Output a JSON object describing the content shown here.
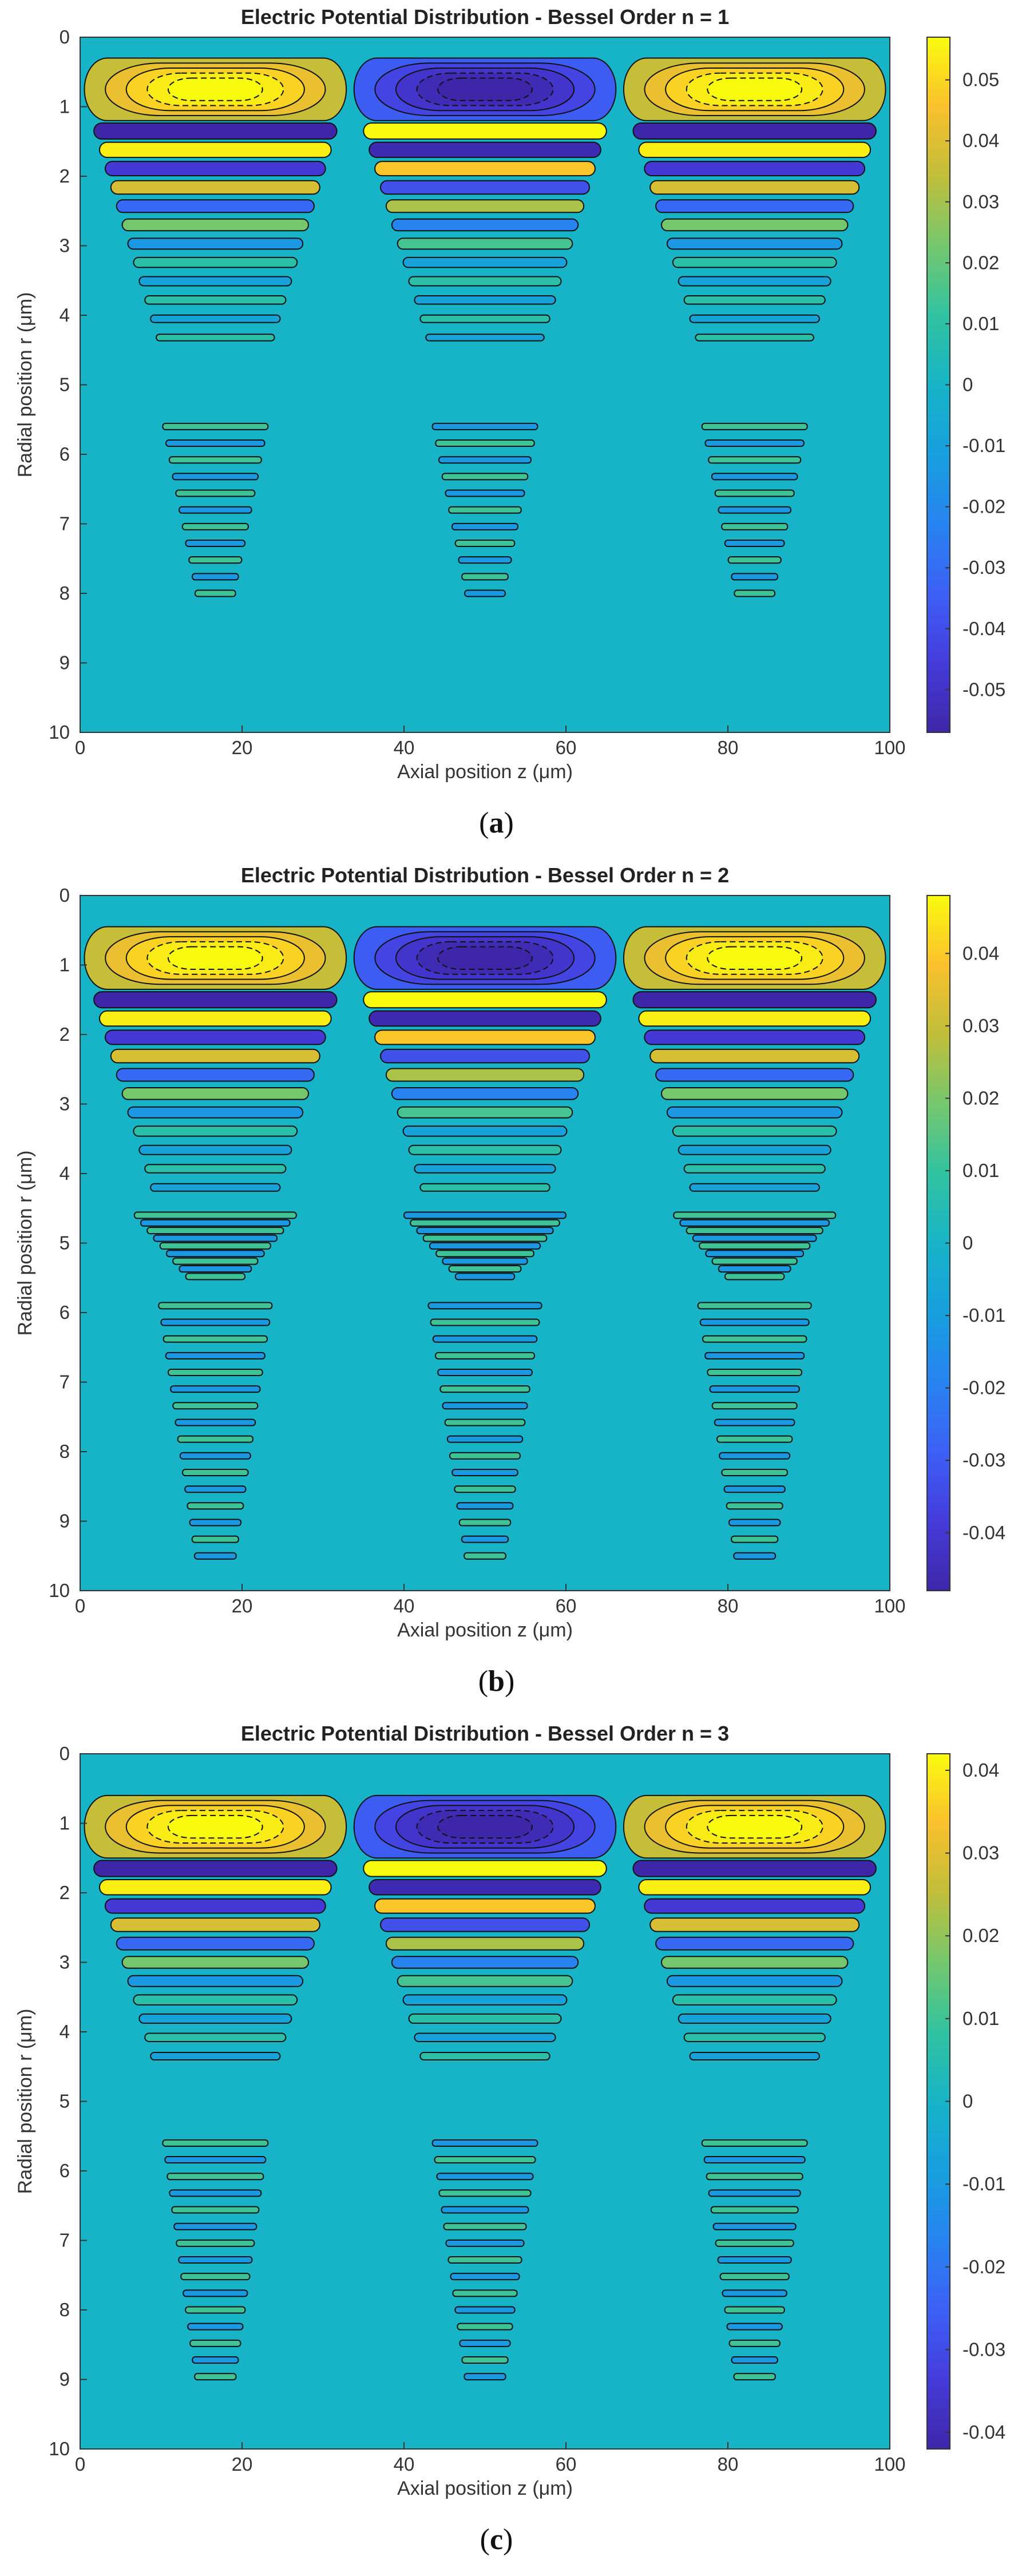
{
  "chart_data": [
    {
      "type": "heatmap",
      "caption_letter": "a",
      "title": "Electric Potential Distribution - Bessel Order n = 1",
      "xlabel": "Axial position z (μm)",
      "ylabel": "Radial position r (μm)",
      "xlim": [
        0,
        100
      ],
      "ylim": [
        0,
        10
      ],
      "xticks": [
        "0",
        "20",
        "40",
        "60",
        "80",
        "100"
      ],
      "yticks": [
        "0",
        "1",
        "2",
        "3",
        "4",
        "5",
        "6",
        "7",
        "8",
        "9",
        "10"
      ],
      "colorbar_range": [
        -0.057,
        0.057
      ],
      "colorbar_ticks": [
        "0.05",
        "0.04",
        "0.03",
        "0.02",
        "0.01",
        "0",
        "-0.01",
        "-0.02",
        "-0.03",
        "-0.04",
        "-0.05"
      ],
      "peak_centers_z": [
        16.7,
        50,
        83.3
      ],
      "peak_r": 0.85,
      "dense_band_r": [
        5.6,
        8.1
      ],
      "hot_color": "#f9fb0e",
      "cold_color": "#3e26a8"
    },
    {
      "type": "heatmap",
      "caption_letter": "b",
      "title": "Electric Potential Distribution - Bessel Order n = 2",
      "xlabel": "Axial position z (μm)",
      "ylabel": "Radial position r (μm)",
      "xlim": [
        0,
        100
      ],
      "ylim": [
        0,
        10
      ],
      "xticks": [
        "0",
        "20",
        "40",
        "60",
        "80",
        "100"
      ],
      "yticks": [
        "0",
        "1",
        "2",
        "3",
        "4",
        "5",
        "6",
        "7",
        "8",
        "9",
        "10"
      ],
      "colorbar_range": [
        -0.048,
        0.048
      ],
      "colorbar_ticks": [
        "0.04",
        "0.03",
        "0.02",
        "0.01",
        "0",
        "-0.01",
        "-0.02",
        "-0.03",
        "-0.04"
      ],
      "peak_centers_z": [
        16.7,
        50,
        83.3
      ],
      "peak_r": 1.0,
      "dense_band_r": [
        4.6,
        9.6
      ],
      "hot_color": "#f9fb0e",
      "cold_color": "#3e26a8"
    },
    {
      "type": "heatmap",
      "caption_letter": "c",
      "title": "Electric Potential Distribution - Bessel Order n = 3",
      "xlabel": "Axial position z (μm)",
      "ylabel": "Radial position r (μm)",
      "xlim": [
        0,
        100
      ],
      "ylim": [
        0,
        10
      ],
      "xticks": [
        "0",
        "20",
        "40",
        "60",
        "80",
        "100"
      ],
      "yticks": [
        "0",
        "1",
        "2",
        "3",
        "4",
        "5",
        "6",
        "7",
        "8",
        "9",
        "10"
      ],
      "colorbar_range": [
        -0.042,
        0.042
      ],
      "colorbar_ticks": [
        "0.04",
        "0.03",
        "0.02",
        "0.01",
        "0",
        "-0.01",
        "-0.02",
        "-0.03",
        "-0.04"
      ],
      "peak_centers_z": [
        16.7,
        50,
        83.3
      ],
      "peak_r": 1.15,
      "dense_band_r": [
        5.6,
        9.2
      ],
      "hot_color": "#f9fb0e",
      "cold_color": "#3e26a8"
    }
  ]
}
